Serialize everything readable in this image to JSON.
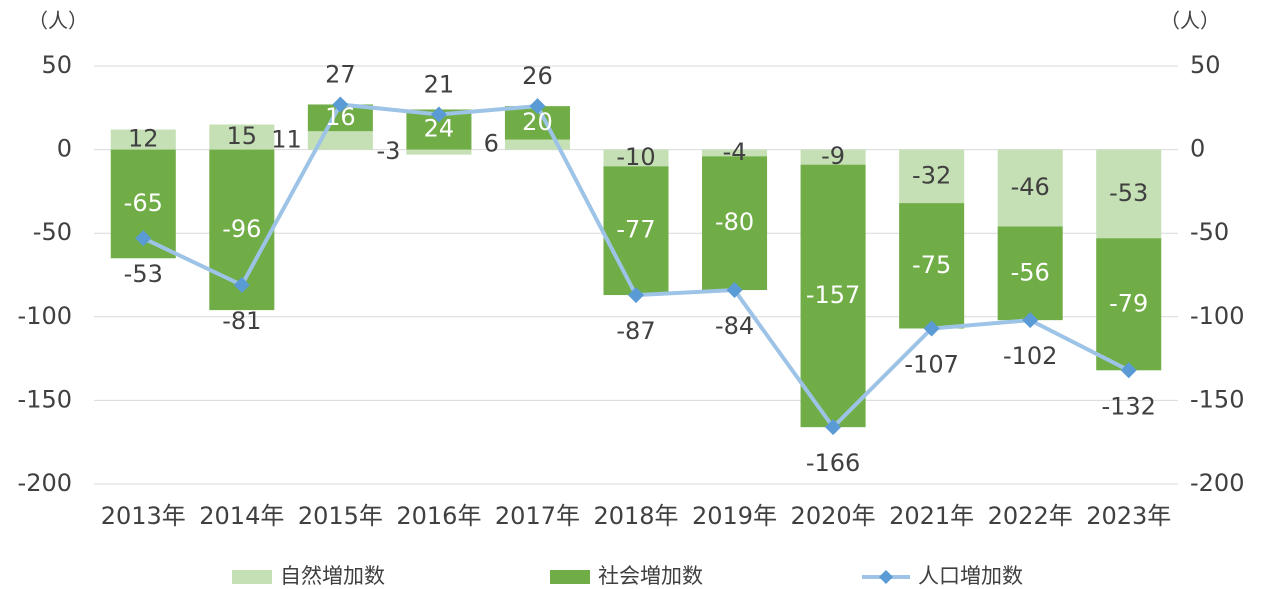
{
  "chart_data": {
    "type": "bar",
    "y_unit_label": "（人）",
    "y2_unit_label": "（人）",
    "categories": [
      "2013年",
      "2014年",
      "2015年",
      "2016年",
      "2017年",
      "2018年",
      "2019年",
      "2020年",
      "2021年",
      "2022年",
      "2023年"
    ],
    "series": [
      {
        "name": "自然増加数",
        "type": "bar",
        "color": "#c5e0b4",
        "values": [
          12,
          15,
          11,
          -3,
          6,
          -10,
          -4,
          -9,
          -32,
          -46,
          -53
        ]
      },
      {
        "name": "社会増加数",
        "type": "bar",
        "color": "#70ad47",
        "values": [
          -65,
          -96,
          16,
          24,
          20,
          -77,
          -80,
          -157,
          -75,
          -56,
          -79
        ]
      },
      {
        "name": "人口増加数",
        "type": "line",
        "axis": "y2",
        "color": "#9dc3e6",
        "marker_color": "#5b9bd5",
        "values": [
          -53,
          -81,
          27,
          21,
          26,
          -87,
          -84,
          -166,
          -107,
          -102,
          -132
        ]
      }
    ],
    "stacked": true,
    "ylim": [
      -200,
      50
    ],
    "yticks": [
      -200,
      -150,
      -100,
      -50,
      0,
      50
    ],
    "y2lim": [
      -200,
      50
    ],
    "y2ticks": [
      -200,
      -150,
      -100,
      -50,
      0,
      50
    ],
    "grid": true,
    "legend": "bottom"
  }
}
